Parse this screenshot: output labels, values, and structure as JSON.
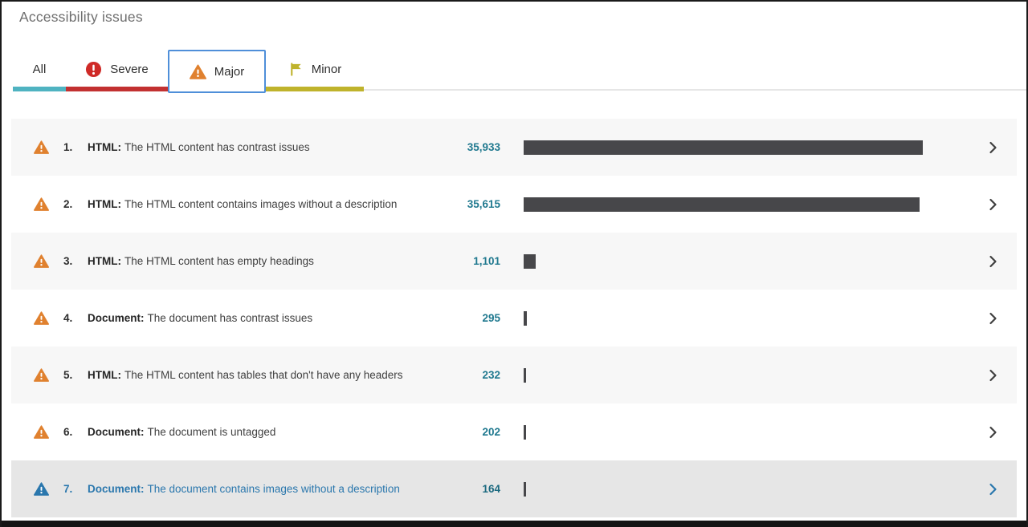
{
  "panel": {
    "title": "Accessibility issues"
  },
  "tabs": {
    "all": {
      "label": "All",
      "underline_color": "#4fb3c1",
      "selected": false
    },
    "severe": {
      "label": "Severe",
      "underline_color": "#c23131",
      "icon": "severe-exclamation-circle-icon",
      "icon_color": "#cf2a27",
      "selected": false
    },
    "major": {
      "label": "Major",
      "underline_color": "#e0812f",
      "icon": "major-warning-triangle-icon",
      "icon_color": "#e0812f",
      "selected": true,
      "selected_border_color": "#4f8fd9"
    },
    "minor": {
      "label": "Minor",
      "underline_color": "#bfb32c",
      "icon": "minor-flag-icon",
      "icon_color": "#bfb32c",
      "selected": false
    }
  },
  "issues": {
    "max_value": 35933,
    "rows": [
      {
        "rank": "1.",
        "category": "HTML:",
        "description": "The HTML content has contrast issues",
        "count": "35,933",
        "value": 35933,
        "highlighted": false
      },
      {
        "rank": "2.",
        "category": "HTML:",
        "description": "The HTML content contains images without a description",
        "count": "35,615",
        "value": 35615,
        "highlighted": false
      },
      {
        "rank": "3.",
        "category": "HTML:",
        "description": "The HTML content has empty headings",
        "count": "1,101",
        "value": 1101,
        "highlighted": false
      },
      {
        "rank": "4.",
        "category": "Document:",
        "description": "The document has contrast issues",
        "count": "295",
        "value": 295,
        "highlighted": false
      },
      {
        "rank": "5.",
        "category": "HTML:",
        "description": "The HTML content has tables that don't have any headers",
        "count": "232",
        "value": 232,
        "highlighted": false
      },
      {
        "rank": "6.",
        "category": "Document:",
        "description": "The document is untagged",
        "count": "202",
        "value": 202,
        "highlighted": false
      },
      {
        "rank": "7.",
        "category": "Document:",
        "description": "The document contains images without a description",
        "count": "164",
        "value": 164,
        "highlighted": true
      }
    ]
  },
  "colors": {
    "bar_fill": "#47474a",
    "count_text": "#20798f",
    "row_alt_background": "#f7f7f7",
    "highlighted_row_background": "#e6e6e6",
    "highlighted_accent": "#2a77ad",
    "selected_tab_border": "#4f8fd9"
  }
}
